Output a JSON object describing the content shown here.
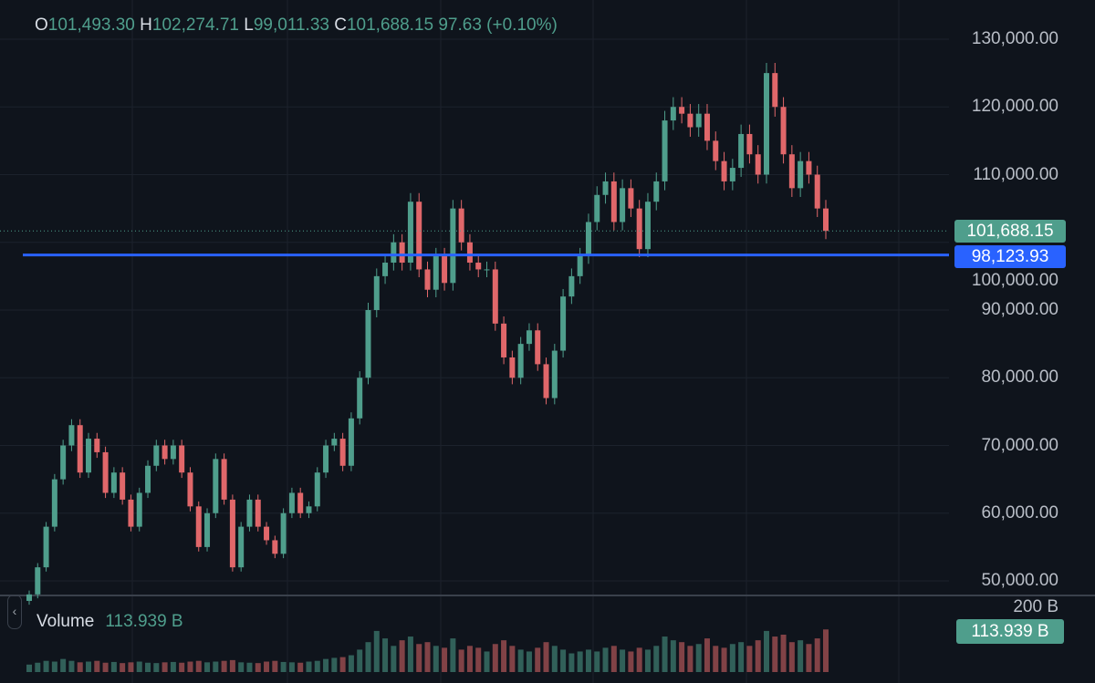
{
  "legend": {
    "o_label": "O",
    "open": "101,493.30",
    "h_label": "H",
    "high": "102,274.71",
    "l_label": "L",
    "low": "99,011.33",
    "c_label": "C",
    "close": "101,688.15",
    "change": "97.63 (+0.10%)"
  },
  "price_axis": [
    "130,000.00",
    "120,000.00",
    "110,000.00",
    "100,000.00",
    "90,000.00",
    "80,000.00",
    "70,000.00",
    "60,000.00",
    "50,000.00"
  ],
  "last_price_tag": "101,688.15",
  "horizontal_line_tag": "98,123.93",
  "volume": {
    "label": "Volume",
    "value": "113.939 B",
    "axis_label": "200 B",
    "tag": "113.939 B"
  },
  "colors": {
    "up": "#4f9e8c",
    "down": "#e0676a",
    "line": "#2962ff",
    "background": "#0f141c"
  },
  "chart_data": {
    "type": "candlestick",
    "ylim": [
      50000,
      130000
    ],
    "grid": true,
    "horizontal_line": 98123.93,
    "last_close": 101688.15,
    "closes": [
      48000,
      52000,
      58000,
      65000,
      70000,
      73000,
      66000,
      71000,
      69000,
      63000,
      66000,
      62000,
      58000,
      63000,
      67000,
      70000,
      68000,
      70000,
      66000,
      61000,
      55000,
      60000,
      68000,
      62000,
      52000,
      58000,
      62000,
      58000,
      56000,
      54000,
      60000,
      63000,
      60000,
      61000,
      66000,
      70000,
      71000,
      67000,
      74000,
      80000,
      90000,
      95000,
      97000,
      100000,
      97000,
      106000,
      96000,
      93000,
      98000,
      94000,
      105000,
      100000,
      97000,
      96000,
      96000,
      88000,
      83000,
      80000,
      85000,
      87000,
      82000,
      77000,
      84000,
      92000,
      95000,
      98000,
      103000,
      107000,
      109000,
      103000,
      108000,
      105000,
      99000,
      106000,
      109000,
      118000,
      120000,
      119000,
      117000,
      119000,
      115000,
      112000,
      109000,
      111000,
      116000,
      113000,
      110000,
      125000,
      120000,
      113000,
      108000,
      112000,
      110000,
      105000,
      101688
    ],
    "volumes_b": [
      20,
      25,
      30,
      28,
      35,
      30,
      26,
      28,
      30,
      25,
      27,
      24,
      26,
      28,
      25,
      24,
      26,
      27,
      25,
      28,
      30,
      26,
      28,
      30,
      32,
      26,
      25,
      24,
      28,
      30,
      27,
      26,
      25,
      28,
      30,
      35,
      38,
      40,
      45,
      60,
      80,
      110,
      90,
      70,
      85,
      95,
      75,
      80,
      70,
      65,
      90,
      60,
      70,
      65,
      55,
      75,
      85,
      70,
      60,
      55,
      65,
      80,
      70,
      60,
      50,
      55,
      60,
      55,
      65,
      70,
      60,
      55,
      65,
      60,
      70,
      95,
      85,
      80,
      70,
      75,
      90,
      70,
      65,
      75,
      80,
      70,
      85,
      110,
      95,
      100,
      80,
      85,
      75,
      90,
      114
    ]
  }
}
